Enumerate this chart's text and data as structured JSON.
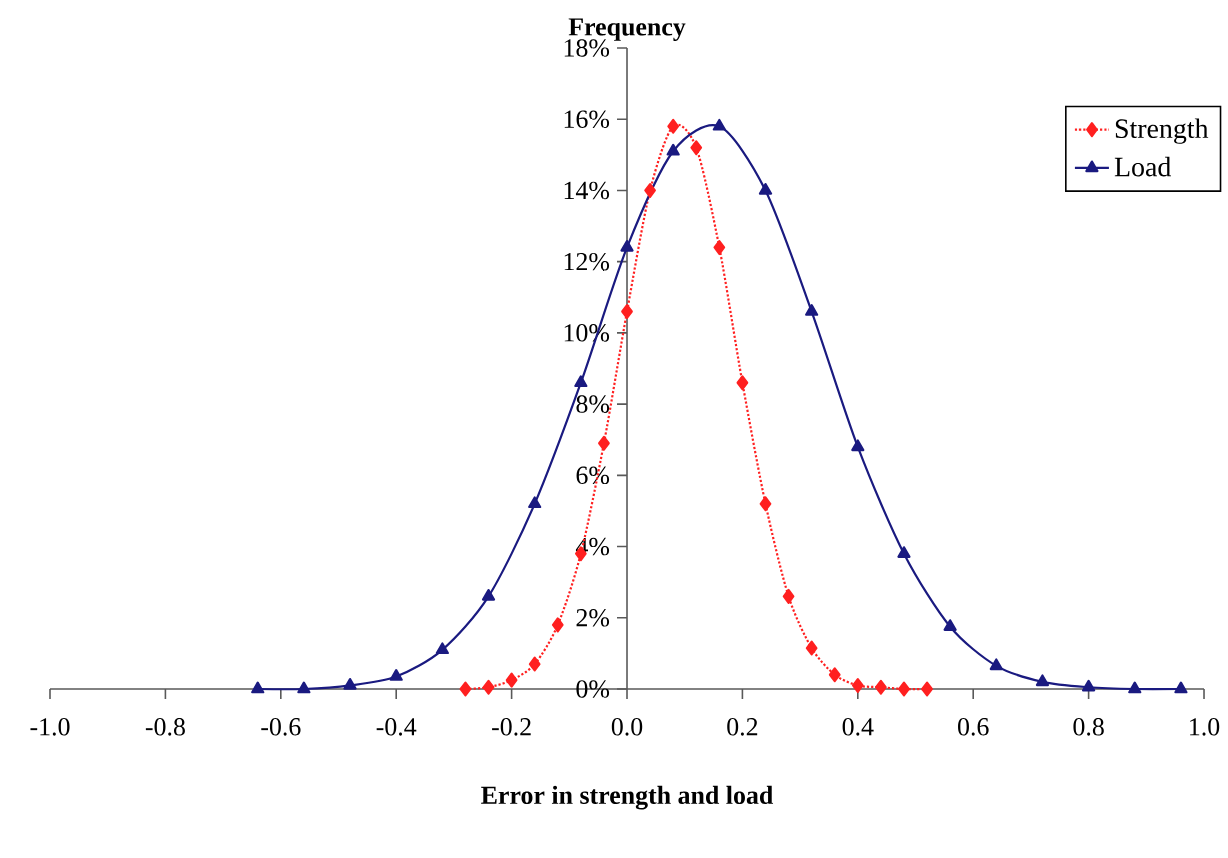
{
  "chart_data": {
    "type": "line",
    "ylabel": "Frequency",
    "xlabel": "Error in strength and load",
    "xlim": [
      -1,
      1
    ],
    "ylim": [
      0,
      18
    ],
    "xticks": [
      {
        "value": -1,
        "label": "-1.0"
      },
      {
        "value": -0.8,
        "label": "-0.8"
      },
      {
        "value": -0.6,
        "label": "-0.6"
      },
      {
        "value": -0.4,
        "label": "-0.4"
      },
      {
        "value": -0.2,
        "label": "-0.2"
      },
      {
        "value": 0,
        "label": "0.0"
      },
      {
        "value": 0.2,
        "label": "0.2"
      },
      {
        "value": 0.4,
        "label": "0.4"
      },
      {
        "value": 0.6,
        "label": "0.6"
      },
      {
        "value": 0.8,
        "label": "0.8"
      },
      {
        "value": 1,
        "label": "1.0"
      }
    ],
    "yticks": [
      {
        "value": 0,
        "label": "0%"
      },
      {
        "value": 2,
        "label": "2%"
      },
      {
        "value": 4,
        "label": "4%"
      },
      {
        "value": 6,
        "label": "6%"
      },
      {
        "value": 8,
        "label": "8%"
      },
      {
        "value": 10,
        "label": "10%"
      },
      {
        "value": 12,
        "label": "12%"
      },
      {
        "value": 14,
        "label": "14%"
      },
      {
        "value": 16,
        "label": "16%"
      },
      {
        "value": 18,
        "label": "18%"
      }
    ],
    "legend": "top right",
    "series": [
      {
        "name": "Strength",
        "color": "#ff2020",
        "marker": "diamond",
        "line_style": "dotted",
        "x": [
          -0.28,
          -0.24,
          -0.2,
          -0.16,
          -0.12,
          -0.08,
          -0.04,
          0,
          0.04,
          0.08,
          0.12,
          0.16,
          0.2,
          0.24,
          0.28,
          0.32,
          0.36,
          0.4,
          0.44,
          0.48,
          0.52
        ],
        "values": [
          0,
          0.05,
          0.25,
          0.7,
          1.8,
          3.8,
          6.9,
          10.6,
          14.0,
          15.8,
          15.2,
          12.4,
          8.6,
          5.2,
          2.6,
          1.15,
          0.4,
          0.1,
          0.05,
          0,
          0
        ]
      },
      {
        "name": "Load",
        "color": "#1a1a80",
        "marker": "triangle",
        "line_style": "solid",
        "x": [
          -0.64,
          -0.56,
          -0.48,
          -0.4,
          -0.32,
          -0.24,
          -0.16,
          -0.08,
          0,
          0.08,
          0.16,
          0.24,
          0.32,
          0.4,
          0.48,
          0.56,
          0.64,
          0.72,
          0.8,
          0.88,
          0.96
        ],
        "values": [
          0,
          0,
          0.1,
          0.35,
          1.1,
          2.6,
          5.2,
          8.6,
          12.4,
          15.1,
          15.8,
          14.0,
          10.6,
          6.8,
          3.8,
          1.75,
          0.65,
          0.2,
          0.05,
          0,
          0
        ]
      }
    ]
  }
}
